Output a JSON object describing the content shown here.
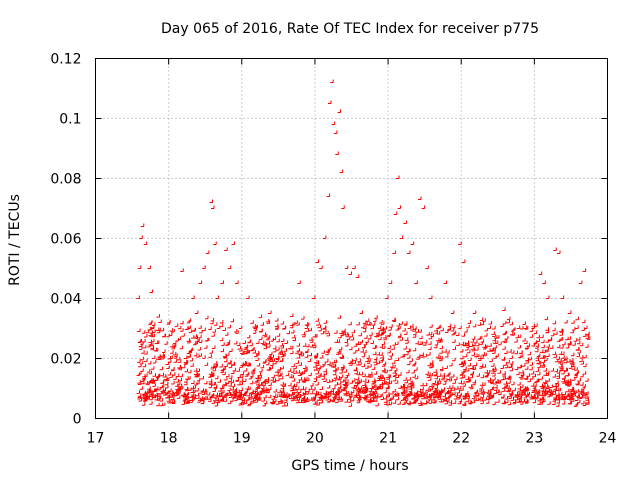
{
  "chart_data": {
    "type": "scatter",
    "title": "Day 065 of 2016, Rate Of TEC Index for receiver p775",
    "xlabel": "GPS time / hours",
    "ylabel": "ROTI / TECUs",
    "xlim": [
      17,
      24
    ],
    "ylim": [
      0,
      0.12
    ],
    "x_ticks": [
      17,
      18,
      19,
      20,
      21,
      22,
      23,
      24
    ],
    "x_tick_labels": [
      "17",
      "18",
      "19",
      "20",
      "21",
      "22",
      "23",
      "24"
    ],
    "y_ticks": [
      0,
      0.02,
      0.04,
      0.06,
      0.08,
      0.1,
      0.12
    ],
    "y_tick_labels": [
      "0",
      "0.02",
      "0.04",
      "0.06",
      "0.08",
      "0.1",
      "0.12"
    ],
    "grid": true,
    "marker": "+",
    "series": [
      {
        "name": "ROTI",
        "color": "#ff0000",
        "x": [
          17.6,
          17.62,
          17.64,
          17.66,
          17.7,
          17.75,
          17.78,
          17.8,
          17.85,
          17.9,
          17.95,
          18.0,
          18.05,
          18.1,
          18.2,
          18.25,
          18.3,
          18.35,
          18.4,
          18.45,
          18.5,
          18.55,
          18.6,
          18.62,
          18.65,
          18.68,
          18.7,
          18.75,
          18.8,
          18.85,
          18.9,
          18.95,
          19.0,
          19.05,
          19.1,
          19.2,
          19.3,
          19.4,
          19.5,
          19.6,
          19.7,
          19.8,
          19.9,
          20.0,
          20.05,
          20.1,
          20.15,
          20.2,
          20.22,
          20.25,
          20.27,
          20.3,
          20.32,
          20.35,
          20.38,
          20.4,
          20.45,
          20.5,
          20.55,
          20.6,
          20.65,
          20.7,
          20.8,
          20.9,
          21.0,
          21.05,
          21.1,
          21.12,
          21.15,
          21.17,
          21.2,
          21.25,
          21.3,
          21.35,
          21.4,
          21.45,
          21.5,
          21.55,
          21.6,
          21.7,
          21.8,
          21.9,
          22.0,
          22.05,
          22.1,
          22.2,
          22.3,
          22.4,
          22.5,
          22.6,
          22.7,
          22.8,
          22.9,
          23.0,
          23.1,
          23.15,
          23.2,
          23.3,
          23.35,
          23.4,
          23.5,
          23.6,
          23.65,
          23.7,
          23.72,
          23.75
        ],
        "y": [
          0.04,
          0.05,
          0.06,
          0.064,
          0.058,
          0.05,
          0.042,
          0.03,
          0.025,
          0.032,
          0.022,
          0.018,
          0.02,
          0.025,
          0.049,
          0.02,
          0.03,
          0.04,
          0.035,
          0.045,
          0.05,
          0.055,
          0.072,
          0.07,
          0.058,
          0.04,
          0.03,
          0.045,
          0.056,
          0.05,
          0.058,
          0.045,
          0.03,
          0.025,
          0.04,
          0.03,
          0.025,
          0.035,
          0.02,
          0.03,
          0.034,
          0.045,
          0.03,
          0.04,
          0.052,
          0.05,
          0.06,
          0.074,
          0.105,
          0.112,
          0.098,
          0.095,
          0.088,
          0.102,
          0.082,
          0.07,
          0.05,
          0.048,
          0.05,
          0.047,
          0.035,
          0.03,
          0.025,
          0.03,
          0.04,
          0.045,
          0.055,
          0.068,
          0.08,
          0.07,
          0.06,
          0.065,
          0.055,
          0.058,
          0.045,
          0.073,
          0.07,
          0.05,
          0.04,
          0.03,
          0.045,
          0.035,
          0.058,
          0.052,
          0.025,
          0.035,
          0.02,
          0.03,
          0.025,
          0.036,
          0.02,
          0.03,
          0.025,
          0.03,
          0.048,
          0.045,
          0.04,
          0.056,
          0.055,
          0.04,
          0.035,
          0.03,
          0.045,
          0.049,
          0.03,
          0.028
        ]
      }
    ]
  }
}
